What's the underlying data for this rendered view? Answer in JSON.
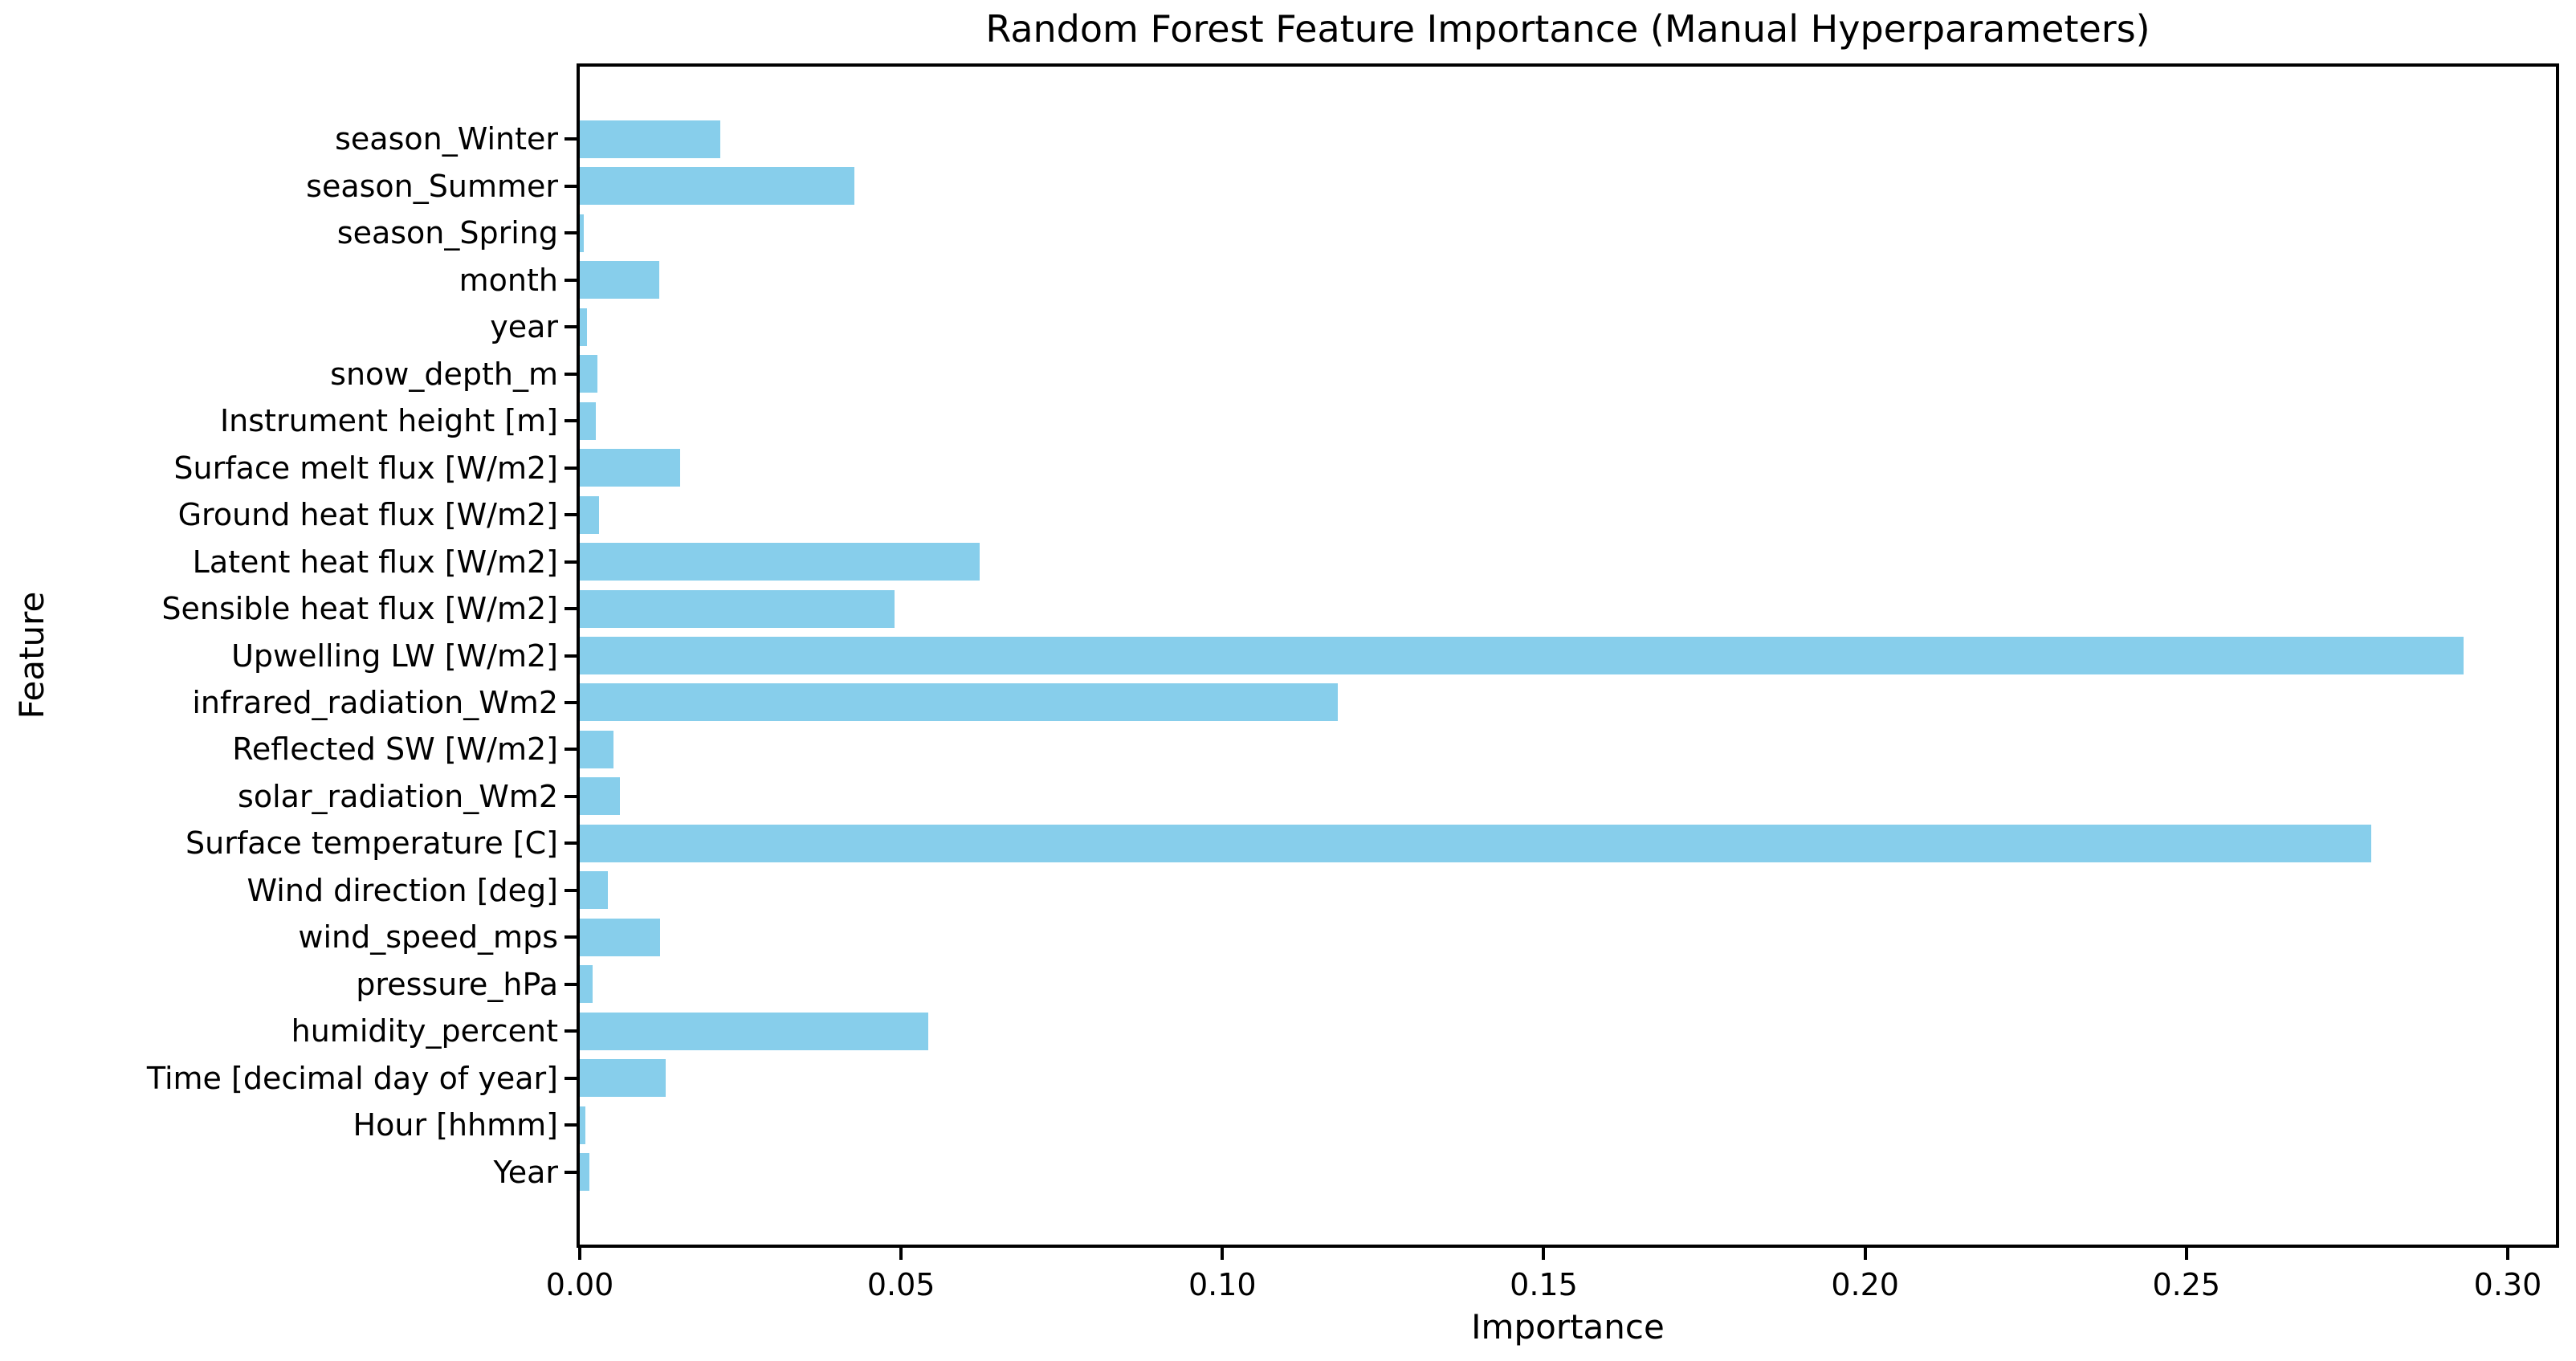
{
  "colors": {
    "bar": "#87ceeb",
    "axis": "#000000",
    "background": "#ffffff"
  },
  "chart_data": {
    "type": "bar",
    "orientation": "horizontal",
    "title": "Random Forest Feature Importance (Manual Hyperparameters)",
    "xlabel": "Importance",
    "ylabel": "Feature",
    "legend": null,
    "grid": false,
    "categories": [
      "season_Winter",
      "season_Summer",
      "season_Spring",
      "month",
      "year",
      "snow_depth_m",
      "Instrument height [m]",
      "Surface melt flux [W/m2]",
      "Ground heat flux [W/m2]",
      "Latent heat flux [W/m2]",
      "Sensible heat flux [W/m2]",
      "Upwelling LW [W/m2]",
      "infrared_radiation_Wm2",
      "Reflected SW [W/m2]",
      "solar_radiation_Wm2",
      "Surface temperature [C]",
      "Wind direction [deg]",
      "wind_speed_mps",
      "pressure_hPa",
      "humidity_percent",
      "Time [decimal day of year]",
      "Hour [hhmm]",
      "Year"
    ],
    "values": [
      0.0219,
      0.0427,
      0.0006,
      0.0124,
      0.0011,
      0.0027,
      0.0025,
      0.0156,
      0.003,
      0.0622,
      0.049,
      0.2931,
      0.118,
      0.0052,
      0.0062,
      0.2787,
      0.0044,
      0.0125,
      0.002,
      0.0542,
      0.0134,
      0.0009,
      0.0015
    ],
    "xlim": [
      0,
      0.3075
    ],
    "xticks": [
      0,
      0.05,
      0.1,
      0.15,
      0.2,
      0.25,
      0.3
    ],
    "xtick_labels": [
      "0.00",
      "0.05",
      "0.10",
      "0.15",
      "0.20",
      "0.25",
      "0.30"
    ],
    "bar_color": "#87ceeb"
  }
}
